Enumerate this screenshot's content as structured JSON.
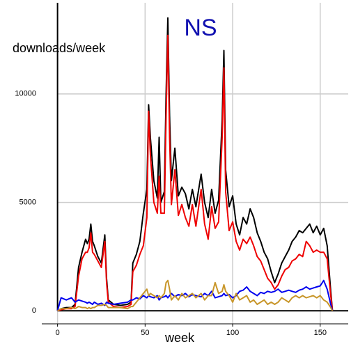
{
  "chart_data": {
    "type": "line",
    "title": "NS",
    "xlabel": "week",
    "ylabel": "downloads/week",
    "xlim": [
      -9,
      166
    ],
    "ylim": [
      -600,
      14200
    ],
    "xticks": [
      0,
      50,
      100,
      150
    ],
    "yticks": [
      0,
      5000,
      10000
    ],
    "grid": true,
    "x": [
      0,
      2,
      5,
      8,
      10,
      12,
      14,
      16,
      17,
      18,
      19,
      20,
      21,
      23,
      25,
      27,
      28,
      29,
      32,
      36,
      40,
      42,
      43,
      45,
      47,
      49,
      51,
      52,
      53,
      55,
      57,
      58,
      59,
      61,
      62,
      63,
      64,
      65,
      67,
      69,
      71,
      73,
      75,
      77,
      79,
      82,
      84,
      86,
      88,
      90,
      92,
      94,
      95,
      96,
      98,
      100,
      102,
      104,
      106,
      108,
      110,
      112,
      114,
      116,
      118,
      120,
      122,
      124,
      126,
      128,
      130,
      132,
      134,
      136,
      138,
      140,
      142,
      144,
      146,
      148,
      150,
      152,
      154,
      156,
      157
    ],
    "series": [
      {
        "color": "#000000",
        "values": [
          0,
          100,
          150,
          150,
          300,
          2000,
          2700,
          3300,
          3100,
          3300,
          4000,
          3200,
          3000,
          2500,
          2200,
          3500,
          1500,
          500,
          300,
          250,
          300,
          400,
          2200,
          2600,
          3200,
          4500,
          5600,
          9500,
          8000,
          6000,
          5200,
          8000,
          5000,
          5500,
          10000,
          13500,
          9000,
          6000,
          7500,
          5300,
          5700,
          5400,
          4700,
          5600,
          4800,
          6300,
          5000,
          4300,
          5600,
          4500,
          5100,
          8800,
          12000,
          6500,
          4800,
          5300,
          4000,
          3500,
          4300,
          4000,
          4700,
          4300,
          3600,
          3200,
          2700,
          2400,
          1800,
          1300,
          1700,
          2200,
          2500,
          2800,
          3200,
          3400,
          3700,
          3600,
          3800,
          4000,
          3600,
          3900,
          3500,
          3800,
          3000,
          900,
          0
        ]
      },
      {
        "color": "#ee0000",
        "values": [
          0,
          50,
          100,
          100,
          200,
          1600,
          2400,
          2700,
          2700,
          2900,
          3600,
          2700,
          2600,
          2300,
          2000,
          3200,
          1300,
          400,
          200,
          150,
          200,
          300,
          1800,
          2100,
          2600,
          3000,
          4300,
          9200,
          7200,
          5000,
          4500,
          6200,
          4500,
          4500,
          9000,
          12700,
          8000,
          4900,
          6500,
          4400,
          4900,
          4300,
          3900,
          4900,
          3900,
          5600,
          4000,
          3300,
          4800,
          3800,
          4100,
          8000,
          11200,
          5500,
          3700,
          4100,
          3200,
          2800,
          3300,
          3100,
          3400,
          3000,
          2500,
          2300,
          1900,
          1500,
          1300,
          1000,
          1200,
          1600,
          1900,
          2000,
          2300,
          2400,
          2600,
          2500,
          3200,
          3000,
          2700,
          2800,
          2700,
          2700,
          2400,
          700,
          0
        ]
      },
      {
        "color": "#0000ee",
        "values": [
          0,
          600,
          500,
          600,
          400,
          500,
          450,
          400,
          350,
          400,
          350,
          300,
          400,
          300,
          350,
          250,
          400,
          350,
          300,
          350,
          400,
          500,
          500,
          600,
          550,
          700,
          600,
          700,
          650,
          600,
          700,
          500,
          600,
          650,
          700,
          600,
          700,
          800,
          650,
          750,
          700,
          800,
          650,
          750,
          700,
          650,
          800,
          700,
          900,
          600,
          650,
          700,
          800,
          700,
          750,
          600,
          700,
          900,
          950,
          1100,
          900,
          800,
          700,
          850,
          800,
          900,
          850,
          900,
          1000,
          850,
          900,
          950,
          900,
          850,
          950,
          1000,
          1100,
          1000,
          1050,
          1100,
          1150,
          1400,
          1000,
          300,
          0
        ]
      },
      {
        "color": "#c8962a",
        "values": [
          0,
          100,
          100,
          150,
          100,
          200,
          150,
          150,
          100,
          150,
          100,
          150,
          150,
          250,
          250,
          300,
          250,
          150,
          150,
          150,
          100,
          200,
          200,
          400,
          600,
          800,
          1000,
          700,
          800,
          700,
          600,
          700,
          600,
          800,
          1300,
          1400,
          1000,
          500,
          700,
          500,
          800,
          600,
          700,
          800,
          600,
          800,
          500,
          700,
          700,
          1300,
          800,
          900,
          1200,
          900,
          700,
          400,
          800,
          500,
          600,
          700,
          400,
          500,
          300,
          400,
          500,
          300,
          400,
          300,
          400,
          600,
          500,
          400,
          600,
          700,
          600,
          700,
          600,
          650,
          700,
          600,
          700,
          500,
          400,
          150,
          0
        ]
      }
    ]
  }
}
